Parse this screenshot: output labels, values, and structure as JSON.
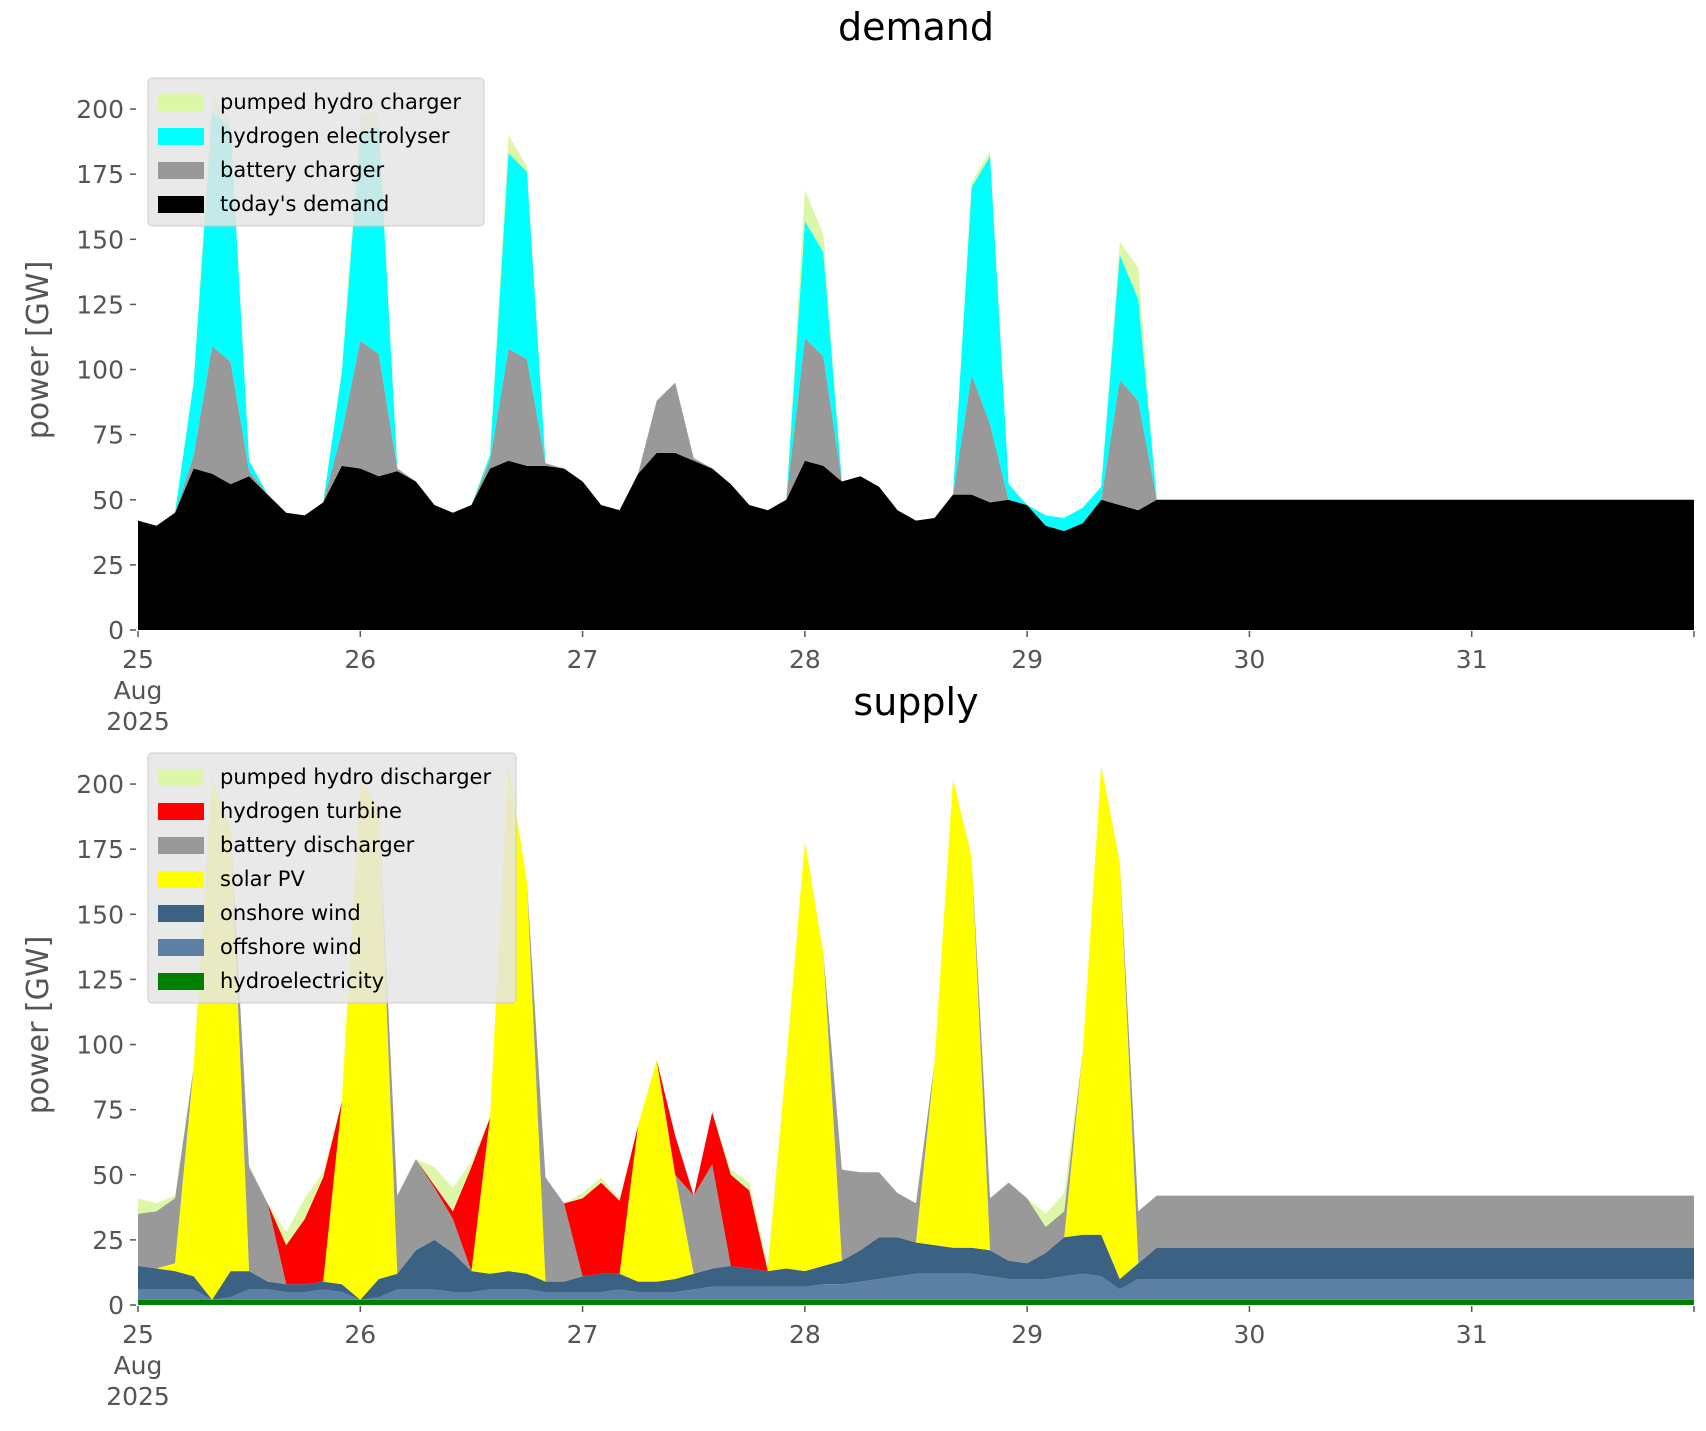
{
  "chart_data": [
    {
      "type": "area",
      "title": "demand",
      "xlabel": "",
      "ylabel": "power [GW]",
      "ylim": [
        0,
        215
      ],
      "xlim": [
        "2025-08-25 00:00",
        "2025-08-31 23:00"
      ],
      "stacked": true,
      "grid": false,
      "legend_position": "top-left",
      "x_ticks": [
        {
          "x": "2025-08-25",
          "label": "25",
          "label2": "Aug",
          "label3": "2025"
        },
        {
          "x": "2025-08-26",
          "label": "26"
        },
        {
          "x": "2025-08-27",
          "label": "27"
        },
        {
          "x": "2025-08-28",
          "label": "28"
        },
        {
          "x": "2025-08-29",
          "label": "29"
        },
        {
          "x": "2025-08-30",
          "label": "30"
        },
        {
          "x": "2025-08-31",
          "label": "31"
        }
      ],
      "y_ticks": [
        0,
        25,
        50,
        75,
        100,
        125,
        150,
        175,
        200
      ],
      "x_sample_hours": [
        0,
        2,
        4,
        6,
        8,
        10,
        12,
        14,
        16,
        18,
        20,
        22
      ],
      "series": [
        {
          "name": "today's demand",
          "color": "#000000",
          "values": [
            42,
            40,
            45,
            62,
            60,
            56,
            59,
            52,
            45,
            44,
            49,
            63,
            62,
            59,
            61,
            57,
            48,
            45,
            48,
            62,
            65,
            63,
            63,
            62,
            57,
            48,
            46,
            60,
            68,
            68,
            65,
            62,
            56,
            48,
            46,
            50,
            65,
            63,
            57,
            59,
            55,
            46,
            42,
            43,
            52,
            52,
            49,
            50,
            48,
            40,
            38,
            41,
            50,
            48,
            46,
            50
          ]
        },
        {
          "name": "battery charger",
          "color": "#999999",
          "values": [
            0,
            0,
            0,
            5,
            49,
            47,
            2,
            0,
            0,
            0,
            0,
            13,
            49,
            47,
            1,
            0,
            0,
            0,
            0,
            3,
            43,
            41,
            1,
            0,
            0,
            0,
            0,
            0,
            20,
            27,
            1,
            0,
            0,
            0,
            0,
            0,
            47,
            42,
            0,
            0,
            0,
            0,
            0,
            0,
            0,
            46,
            30,
            0,
            0,
            0,
            0,
            0,
            0,
            48,
            42,
            0
          ]
        },
        {
          "name": "hydrogen electrolyser",
          "color": "#00ffff",
          "values": [
            0,
            0,
            0,
            28,
            90,
            90,
            4,
            0,
            0,
            0,
            0,
            23,
            80,
            87,
            0,
            0,
            0,
            0,
            0,
            2,
            75,
            72,
            0,
            0,
            0,
            0,
            0,
            0,
            0,
            0,
            0,
            0,
            0,
            0,
            0,
            0,
            45,
            40,
            0,
            0,
            0,
            0,
            0,
            0,
            0,
            72,
            103,
            6,
            0,
            4,
            5,
            6,
            5,
            48,
            39,
            0
          ]
        },
        {
          "name": "pumped hydro charger",
          "color": "#dcf7a8",
          "values": [
            0,
            0,
            0,
            1,
            6,
            3,
            0,
            0,
            0,
            0,
            0,
            1,
            7,
            6,
            0,
            0,
            0,
            0,
            0,
            1,
            7,
            2,
            0,
            0,
            0,
            0,
            0,
            0,
            0,
            0,
            0,
            0,
            0,
            0,
            0,
            0,
            12,
            7,
            0,
            0,
            0,
            0,
            0,
            0,
            0,
            2,
            2,
            0,
            0,
            0,
            0,
            0,
            0,
            5,
            12,
            0
          ]
        }
      ]
    },
    {
      "type": "area",
      "title": "supply",
      "xlabel": "",
      "ylabel": "power [GW]",
      "ylim": [
        0,
        215
      ],
      "xlim": [
        "2025-08-25 00:00",
        "2025-08-31 23:00"
      ],
      "stacked": true,
      "grid": false,
      "legend_position": "top-left",
      "x_ticks": [
        {
          "x": "2025-08-25",
          "label": "25",
          "label2": "Aug",
          "label3": "2025"
        },
        {
          "x": "2025-08-26",
          "label": "26"
        },
        {
          "x": "2025-08-27",
          "label": "27"
        },
        {
          "x": "2025-08-28",
          "label": "28"
        },
        {
          "x": "2025-08-29",
          "label": "29"
        },
        {
          "x": "2025-08-30",
          "label": "30"
        },
        {
          "x": "2025-08-31",
          "label": "31"
        }
      ],
      "y_ticks": [
        0,
        25,
        50,
        75,
        100,
        125,
        150,
        175,
        200
      ],
      "x_sample_hours": [
        0,
        2,
        4,
        6,
        8,
        10,
        12,
        14,
        16,
        18,
        20,
        22
      ],
      "series": [
        {
          "name": "hydroelectricity",
          "color": "#008000",
          "values": [
            2,
            2,
            2,
            2,
            2,
            2,
            2,
            2,
            2,
            2,
            2,
            2,
            2,
            2,
            2,
            2,
            2,
            2,
            2,
            2,
            2,
            2,
            2,
            2,
            2,
            2,
            2,
            2,
            2,
            2,
            2,
            2,
            2,
            2,
            2,
            2,
            2,
            2,
            2,
            2,
            2,
            2,
            2,
            2,
            2,
            2,
            2,
            2,
            2,
            2,
            2,
            2,
            2,
            2,
            2,
            2
          ]
        },
        {
          "name": "offshore wind",
          "color": "#5b80a3",
          "values": [
            4,
            4,
            4,
            4,
            0,
            1,
            4,
            4,
            3,
            3,
            4,
            3,
            0,
            1,
            4,
            4,
            4,
            3,
            3,
            4,
            4,
            4,
            3,
            3,
            3,
            3,
            4,
            3,
            3,
            3,
            4,
            5,
            5,
            5,
            5,
            5,
            5,
            6,
            6,
            7,
            8,
            9,
            10,
            10,
            10,
            10,
            9,
            8,
            8,
            8,
            9,
            10,
            9,
            4,
            8,
            8
          ]
        },
        {
          "name": "onshore wind",
          "color": "#3b6183",
          "values": [
            9,
            8,
            7,
            5,
            0,
            10,
            7,
            3,
            3,
            3,
            3,
            3,
            0,
            7,
            6,
            15,
            19,
            15,
            8,
            6,
            7,
            6,
            4,
            4,
            6,
            7,
            6,
            4,
            4,
            5,
            6,
            7,
            8,
            7,
            6,
            7,
            6,
            7,
            9,
            12,
            16,
            15,
            12,
            11,
            10,
            10,
            10,
            7,
            6,
            10,
            15,
            15,
            16,
            4,
            6,
            12
          ]
        },
        {
          "name": "solar PV",
          "color": "#ffff00",
          "values": [
            0,
            0,
            3,
            80,
            200,
            170,
            0,
            0,
            0,
            0,
            0,
            70,
            200,
            180,
            0,
            0,
            0,
            0,
            0,
            60,
            195,
            150,
            0,
            0,
            0,
            0,
            0,
            60,
            85,
            40,
            0,
            0,
            0,
            0,
            0,
            80,
            165,
            120,
            0,
            0,
            0,
            0,
            0,
            70,
            180,
            150,
            0,
            0,
            0,
            0,
            0,
            70,
            180,
            160,
            0,
            0
          ]
        },
        {
          "name": "battery discharger",
          "color": "#999999",
          "values": [
            20,
            22,
            25,
            0,
            0,
            0,
            40,
            30,
            0,
            0,
            0,
            0,
            0,
            0,
            30,
            35,
            20,
            13,
            0,
            0,
            0,
            0,
            40,
            30,
            0,
            0,
            0,
            0,
            0,
            0,
            30,
            40,
            0,
            0,
            0,
            0,
            0,
            0,
            35,
            30,
            25,
            17,
            15,
            0,
            0,
            0,
            20,
            30,
            25,
            10,
            10,
            0,
            0,
            0,
            20,
            20
          ]
        },
        {
          "name": "hydrogen turbine",
          "color": "#ff0000",
          "values": [
            0,
            0,
            0,
            0,
            0,
            0,
            0,
            0,
            15,
            25,
            40,
            0,
            0,
            0,
            0,
            0,
            1,
            3,
            40,
            0,
            0,
            0,
            0,
            0,
            30,
            35,
            28,
            0,
            0,
            15,
            0,
            20,
            35,
            30,
            0,
            0,
            0,
            0,
            0,
            0,
            0,
            0,
            0,
            0,
            0,
            0,
            0,
            0,
            0,
            0,
            0,
            0,
            0,
            0,
            0,
            0
          ]
        },
        {
          "name": "pumped hydro discharger",
          "color": "#dcf7a8",
          "values": [
            6,
            3,
            1,
            1,
            1,
            1,
            1,
            0,
            5,
            8,
            2,
            0,
            0,
            0,
            0,
            0,
            7,
            9,
            2,
            0,
            0,
            0,
            0,
            0,
            2,
            2,
            1,
            0,
            0,
            0,
            0,
            0,
            2,
            3,
            3,
            0,
            0,
            0,
            0,
            0,
            0,
            0,
            0,
            0,
            0,
            0,
            0,
            0,
            0,
            5,
            7,
            0,
            0,
            0,
            0,
            0
          ]
        }
      ]
    }
  ]
}
